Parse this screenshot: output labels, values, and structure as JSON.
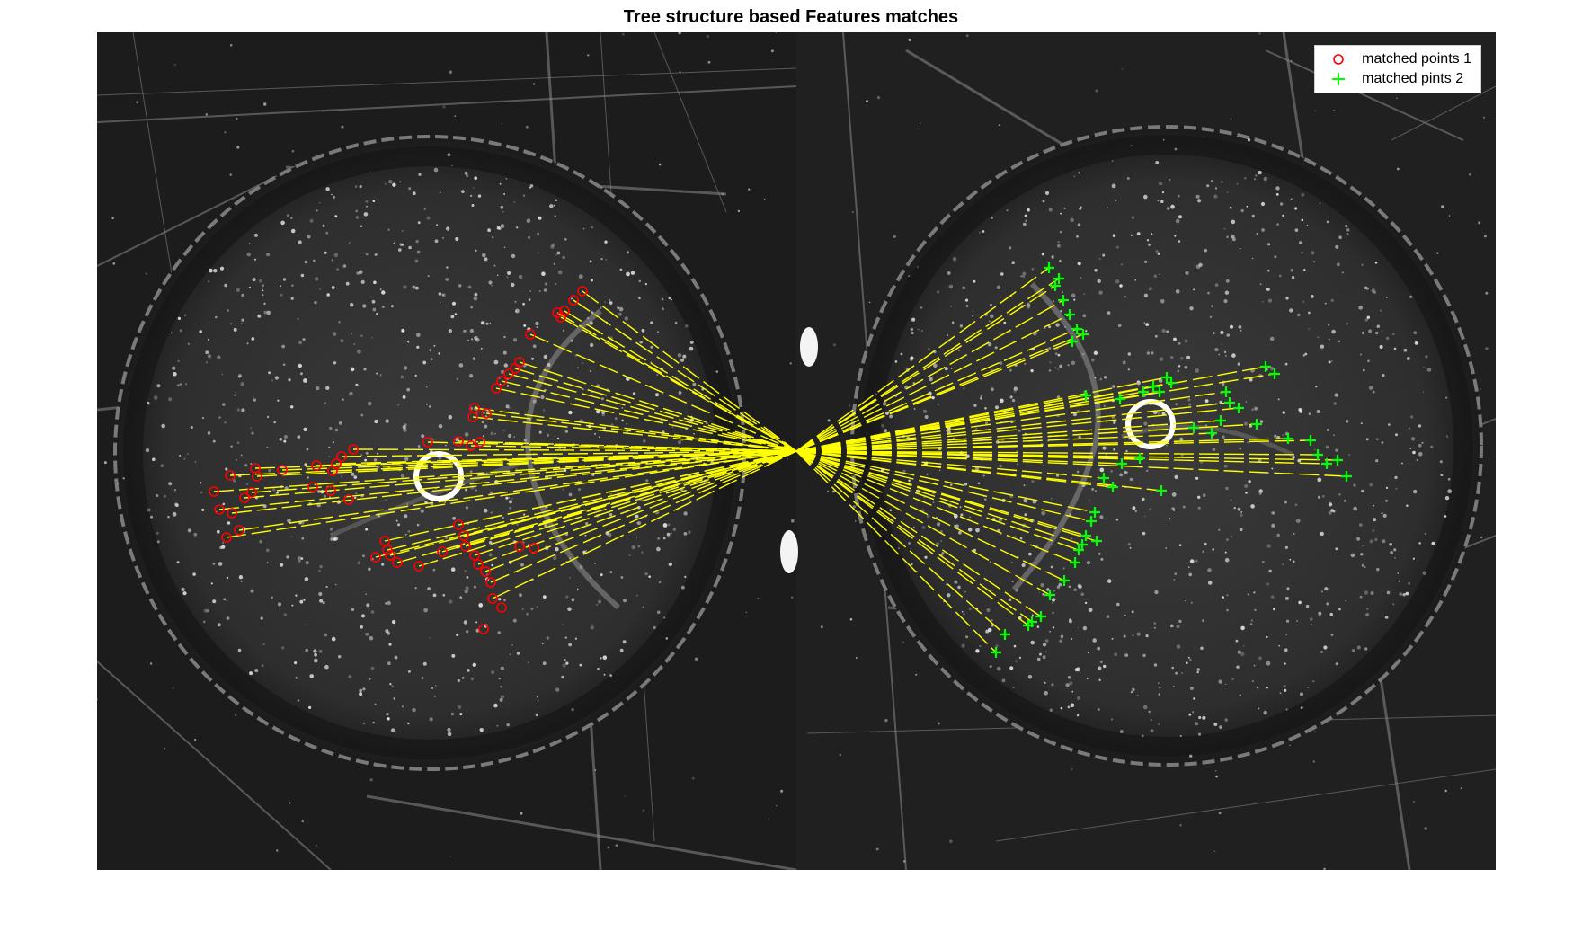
{
  "figure": {
    "title": "Tree structure based Features matches"
  },
  "legend": {
    "position": "top-right",
    "items": [
      {
        "label": "matched points 1",
        "marker": "circle",
        "color": "#ff0000"
      },
      {
        "label": "matched pints 2",
        "marker": "plus",
        "color": "#00ff00"
      }
    ]
  },
  "colors": {
    "background": "#ffffff",
    "image_dark": "#1a1a1a",
    "match_line": "#ffff00",
    "points1": "#ff0000",
    "points2": "#00ff00"
  }
}
